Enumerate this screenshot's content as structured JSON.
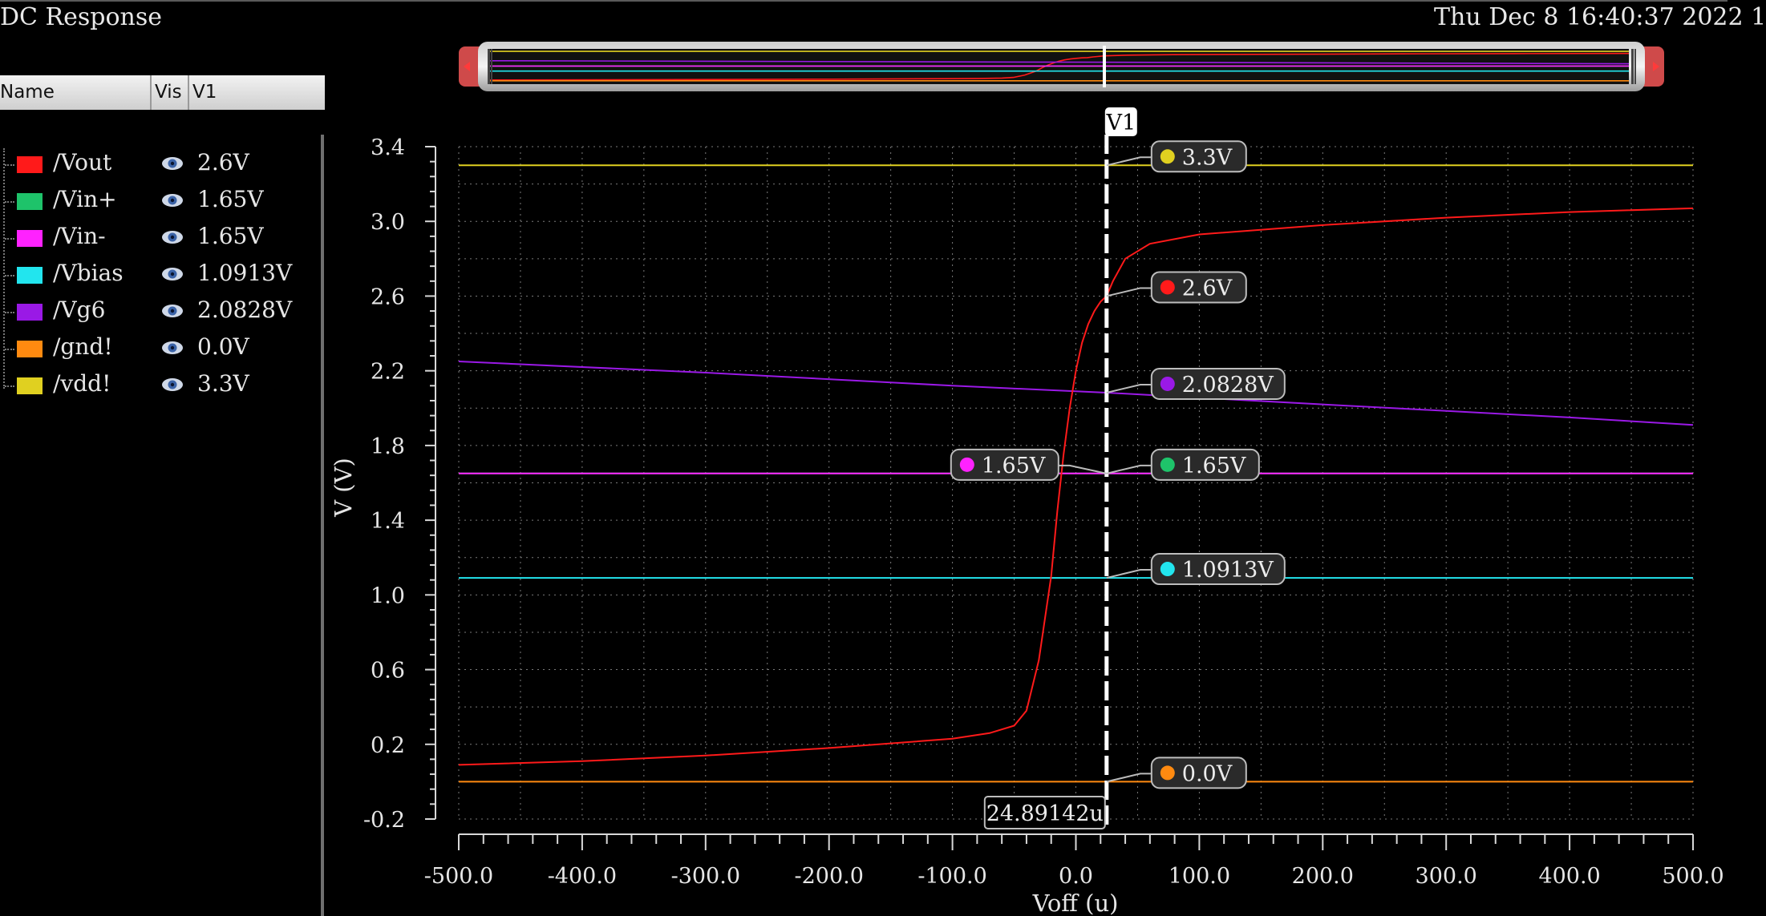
{
  "window": {
    "title": "DC Response",
    "datetime": "Thu Dec 8 16:40:37 2022  1"
  },
  "legend": {
    "headers": {
      "name": "Name",
      "vis": "Vis",
      "v1": "V1"
    },
    "items": [
      {
        "name": "/Vout",
        "value": "2.6V",
        "color": "#ff1a1a",
        "icon": "eye-icon"
      },
      {
        "name": "/Vin+",
        "value": "1.65V",
        "color": "#1ec36a",
        "icon": "eye-icon"
      },
      {
        "name": "/Vin-",
        "value": "1.65V",
        "color": "#ff22ff",
        "icon": "eye-icon"
      },
      {
        "name": "/Vbias",
        "value": "1.0913V",
        "color": "#22e5ee",
        "icon": "eye-icon"
      },
      {
        "name": "/Vg6",
        "value": "2.0828V",
        "color": "#9a19e6",
        "icon": "eye-icon"
      },
      {
        "name": "/gnd!",
        "value": "0.0V",
        "color": "#ff8a10",
        "icon": "eye-icon"
      },
      {
        "name": "/vdd!",
        "value": "3.3V",
        "color": "#e0d020",
        "icon": "eye-icon"
      }
    ]
  },
  "chart_data": {
    "type": "line",
    "xlabel": "Voff (u)",
    "ylabel": "V (V)",
    "xlim": [
      -500,
      500
    ],
    "ylim": [
      -0.2,
      3.4
    ],
    "x_ticks": [
      "-500.0",
      "-400.0",
      "-300.0",
      "-200.0",
      "-100.0",
      "0.0",
      "100.0",
      "200.0",
      "300.0",
      "400.0",
      "500.0"
    ],
    "y_ticks": [
      "-0.2",
      "0.2",
      "0.6",
      "1.0",
      "1.4",
      "1.8",
      "2.2",
      "2.6",
      "3.0",
      "3.4"
    ],
    "grid": true,
    "series": [
      {
        "name": "/Vout",
        "color": "#ff1a1a",
        "x": [
          -500,
          -400,
          -300,
          -200,
          -100,
          -70,
          -50,
          -40,
          -30,
          -20,
          -15,
          -10,
          -5,
          0,
          5,
          10,
          15,
          20,
          24.89,
          30,
          40,
          60,
          100,
          200,
          300,
          400,
          500
        ],
        "y": [
          0.09,
          0.11,
          0.14,
          0.18,
          0.23,
          0.26,
          0.3,
          0.38,
          0.65,
          1.1,
          1.45,
          1.75,
          2.0,
          2.2,
          2.35,
          2.45,
          2.52,
          2.57,
          2.6,
          2.68,
          2.8,
          2.88,
          2.93,
          2.98,
          3.02,
          3.05,
          3.07
        ]
      },
      {
        "name": "/Vin+",
        "color": "#1ec36a",
        "x": [
          -500,
          500
        ],
        "y": [
          1.65,
          1.65
        ]
      },
      {
        "name": "/Vin-",
        "color": "#ff22ff",
        "x": [
          -500,
          500
        ],
        "y": [
          1.65,
          1.65
        ]
      },
      {
        "name": "/Vbias",
        "color": "#22e5ee",
        "x": [
          -500,
          500
        ],
        "y": [
          1.0913,
          1.0913
        ]
      },
      {
        "name": "/Vg6",
        "color": "#9a19e6",
        "x": [
          -500,
          -300,
          -100,
          24.89,
          200,
          400,
          500
        ],
        "y": [
          2.25,
          2.19,
          2.12,
          2.0828,
          2.02,
          1.95,
          1.91
        ]
      },
      {
        "name": "/gnd!",
        "color": "#ff8a10",
        "x": [
          -500,
          500
        ],
        "y": [
          0.0,
          0.0
        ]
      },
      {
        "name": "/vdd!",
        "color": "#e0d020",
        "x": [
          -500,
          500
        ],
        "y": [
          3.3,
          3.3
        ]
      }
    ],
    "cursor": {
      "label": "V1",
      "x": 24.89142,
      "x_readout": "24.89142u",
      "markers": [
        {
          "series": "/vdd!",
          "y": 3.3,
          "label": "3.3V",
          "color": "#e0d020",
          "side": "right"
        },
        {
          "series": "/Vout",
          "y": 2.6,
          "label": "2.6V",
          "color": "#ff1a1a",
          "side": "right"
        },
        {
          "series": "/Vg6",
          "y": 2.0828,
          "label": "2.0828V",
          "color": "#9a19e6",
          "side": "right"
        },
        {
          "series": "/Vin-",
          "y": 1.65,
          "label": "1.65V",
          "color": "#ff22ff",
          "side": "left"
        },
        {
          "series": "/Vin+",
          "y": 1.65,
          "label": "1.65V",
          "color": "#1ec36a",
          "side": "right"
        },
        {
          "series": "/Vbias",
          "y": 1.0913,
          "label": "1.0913V",
          "color": "#22e5ee",
          "side": "right"
        },
        {
          "series": "/gnd!",
          "y": 0.0,
          "label": "0.0V",
          "color": "#ff8a10",
          "side": "right"
        }
      ]
    }
  }
}
